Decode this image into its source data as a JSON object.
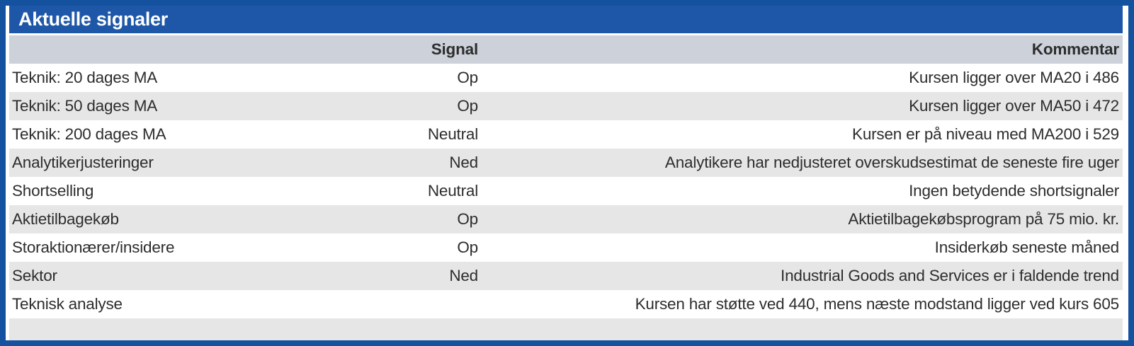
{
  "title": "Aktuelle signaler",
  "columns": {
    "signal": "Signal",
    "comment": "Kommentar"
  },
  "rows": [
    {
      "label": "Teknik: 20 dages MA",
      "signal": "Op",
      "comment": "Kursen ligger over MA20 i 486"
    },
    {
      "label": "Teknik: 50 dages MA",
      "signal": "Op",
      "comment": "Kursen ligger over MA50 i 472"
    },
    {
      "label": "Teknik: 200 dages MA",
      "signal": "Neutral",
      "comment": "Kursen er på niveau med MA200 i 529"
    },
    {
      "label": "Analytikerjusteringer",
      "signal": "Ned",
      "comment": "Analytikere har nedjusteret overskudsestimat de seneste fire uger"
    },
    {
      "label": "Shortselling",
      "signal": "Neutral",
      "comment": "Ingen betydende shortsignaler"
    },
    {
      "label": "Aktietilbagekøb",
      "signal": "Op",
      "comment": "Aktietilbagekøbsprogram på 75 mio. kr."
    },
    {
      "label": "Storaktionærer/insidere",
      "signal": "Op",
      "comment": "Insiderkøb seneste måned"
    },
    {
      "label": "Sektor",
      "signal": "Ned",
      "comment": "Industrial Goods and Services er i faldende trend"
    },
    {
      "label": "Teknisk analyse",
      "signal": "",
      "comment": "Kursen har støtte ved 440, mens næste modstand ligger ved kurs 605"
    }
  ],
  "colors": {
    "border_blue": "#14519E",
    "title_bar_blue": "#1F57A8",
    "header_row_gray": "#CDD1D9",
    "alt_row_gray": "#E6E6E6",
    "text": "#2D2D2D"
  }
}
